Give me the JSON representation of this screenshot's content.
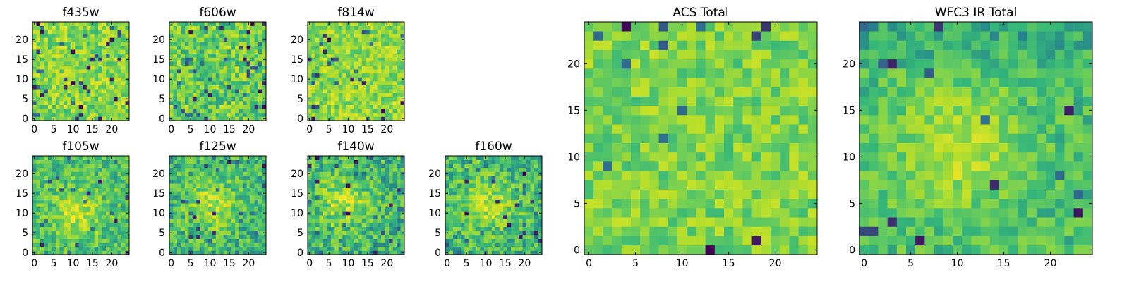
{
  "figure": {
    "description_colormap": "viridis",
    "colors": [
      "#440154",
      "#31688e",
      "#26828e",
      "#35b779",
      "#6ece58",
      "#b5de2b",
      "#fde725"
    ]
  },
  "chart_data": [
    {
      "type": "heatmap",
      "id": "f435w",
      "title": "f435w",
      "grid": [
        25,
        25
      ],
      "xticks": [
        "0",
        "5",
        "10",
        "15",
        "20"
      ],
      "yticks": [
        "0",
        "5",
        "10",
        "15",
        "20"
      ],
      "xlim": [
        -0.5,
        24.5
      ],
      "ylim": [
        -0.5,
        24.5
      ],
      "pattern": "noise",
      "seed": 11,
      "mean": 0.72,
      "spread": 0.22,
      "dark_fraction": 0.06
    },
    {
      "type": "heatmap",
      "id": "f606w",
      "title": "f606w",
      "grid": [
        25,
        25
      ],
      "xticks": [
        "0",
        "5",
        "10",
        "15",
        "20"
      ],
      "yticks": [
        "0",
        "5",
        "10",
        "15",
        "20"
      ],
      "xlim": [
        -0.5,
        24.5
      ],
      "ylim": [
        -0.5,
        24.5
      ],
      "pattern": "noise",
      "seed": 23,
      "mean": 0.66,
      "spread": 0.24,
      "dark_fraction": 0.06
    },
    {
      "type": "heatmap",
      "id": "f814w",
      "title": "f814w",
      "grid": [
        25,
        25
      ],
      "xticks": [
        "0",
        "5",
        "10",
        "15",
        "20"
      ],
      "yticks": [
        "0",
        "5",
        "10",
        "15",
        "20"
      ],
      "xlim": [
        -0.5,
        24.5
      ],
      "ylim": [
        -0.5,
        24.5
      ],
      "pattern": "noise",
      "seed": 37,
      "mean": 0.74,
      "spread": 0.2,
      "dark_fraction": 0.05
    },
    {
      "type": "heatmap",
      "id": "f105w",
      "title": "f105w",
      "grid": [
        25,
        25
      ],
      "xticks": [
        "0",
        "5",
        "10",
        "15",
        "20"
      ],
      "yticks": [
        "0",
        "5",
        "10",
        "15",
        "20"
      ],
      "xlim": [
        -0.5,
        24.5
      ],
      "ylim": [
        -0.5,
        24.5
      ],
      "pattern": "blob",
      "seed": 41,
      "center": [
        11,
        10
      ],
      "mean": 0.62,
      "spread": 0.2,
      "dark_fraction": 0.04
    },
    {
      "type": "heatmap",
      "id": "f125w",
      "title": "f125w",
      "grid": [
        25,
        25
      ],
      "xticks": [
        "0",
        "5",
        "10",
        "15",
        "20"
      ],
      "yticks": [
        "0",
        "5",
        "10",
        "15",
        "20"
      ],
      "xlim": [
        -0.5,
        24.5
      ],
      "ylim": [
        -0.5,
        24.5
      ],
      "pattern": "blob",
      "seed": 53,
      "center": [
        11,
        12
      ],
      "mean": 0.6,
      "spread": 0.22,
      "dark_fraction": 0.05
    },
    {
      "type": "heatmap",
      "id": "f140w",
      "title": "f140w",
      "grid": [
        25,
        25
      ],
      "xticks": [
        "0",
        "5",
        "10",
        "15",
        "20"
      ],
      "yticks": [
        "0",
        "5",
        "10",
        "15",
        "20"
      ],
      "xlim": [
        -0.5,
        24.5
      ],
      "ylim": [
        -0.5,
        24.5
      ],
      "pattern": "blob",
      "seed": 67,
      "center": [
        9,
        13
      ],
      "mean": 0.6,
      "spread": 0.22,
      "dark_fraction": 0.04
    },
    {
      "type": "heatmap",
      "id": "f160w",
      "title": "f160w",
      "grid": [
        25,
        25
      ],
      "xticks": [
        "0",
        "5",
        "10",
        "15",
        "20"
      ],
      "yticks": [
        "0",
        "5",
        "10",
        "15",
        "20"
      ],
      "xlim": [
        -0.5,
        24.5
      ],
      "ylim": [
        -0.5,
        24.5
      ],
      "pattern": "blob",
      "seed": 79,
      "center": [
        10,
        12
      ],
      "mean": 0.6,
      "spread": 0.22,
      "dark_fraction": 0.04
    },
    {
      "type": "heatmap",
      "id": "acs-total",
      "title": "ACS Total",
      "grid": [
        25,
        25
      ],
      "xticks": [
        "0",
        "5",
        "10",
        "15",
        "20"
      ],
      "yticks": [
        "0",
        "5",
        "10",
        "15",
        "20"
      ],
      "xlim": [
        -0.5,
        24.5
      ],
      "ylim": [
        -0.5,
        24.5
      ],
      "pattern": "noise",
      "seed": 97,
      "mean": 0.7,
      "spread": 0.18,
      "dark_fraction": 0.03
    },
    {
      "type": "heatmap",
      "id": "wfc3-total",
      "title": "WFC3 IR Total",
      "grid": [
        25,
        25
      ],
      "xticks": [
        "0",
        "5",
        "10",
        "15",
        "20"
      ],
      "yticks": [
        "0",
        "5",
        "10",
        "15",
        "20"
      ],
      "xlim": [
        -0.5,
        24.5
      ],
      "ylim": [
        -0.5,
        24.5
      ],
      "pattern": "blob",
      "seed": 113,
      "center": [
        10,
        11
      ],
      "mean": 0.62,
      "spread": 0.16,
      "dark_fraction": 0.02,
      "dark_edge": "top"
    }
  ]
}
